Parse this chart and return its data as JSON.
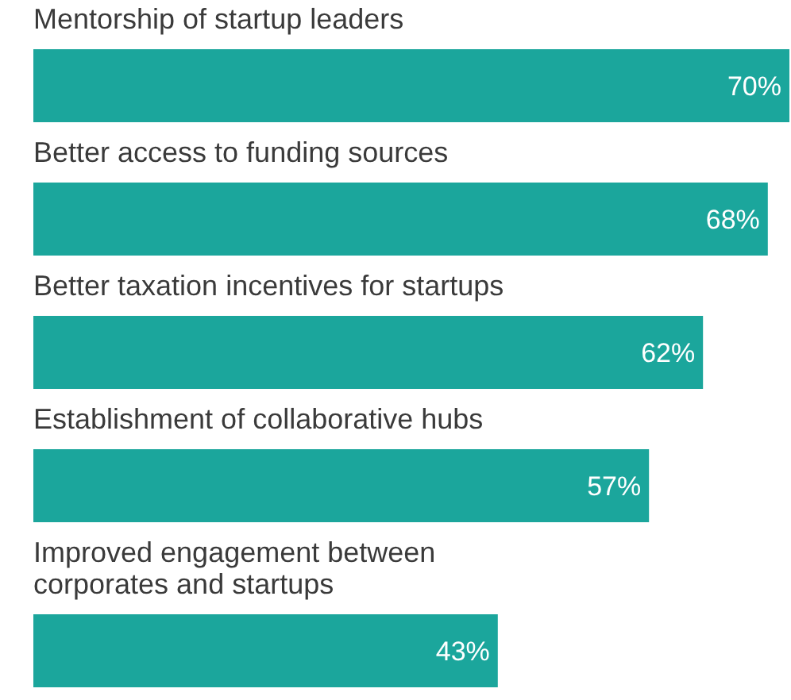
{
  "chart_data": {
    "type": "bar",
    "orientation": "horizontal",
    "categories": [
      "Mentorship of startup leaders",
      "Better access to funding sources",
      "Better taxation incentives for startups",
      "Establishment of collaborative hubs",
      "Improved engagement between corporates and startups"
    ],
    "values": [
      70,
      68,
      62,
      57,
      43
    ],
    "value_labels": [
      "70%",
      "68%",
      "62%",
      "57%",
      "43%"
    ],
    "color": "#1ba69c"
  }
}
